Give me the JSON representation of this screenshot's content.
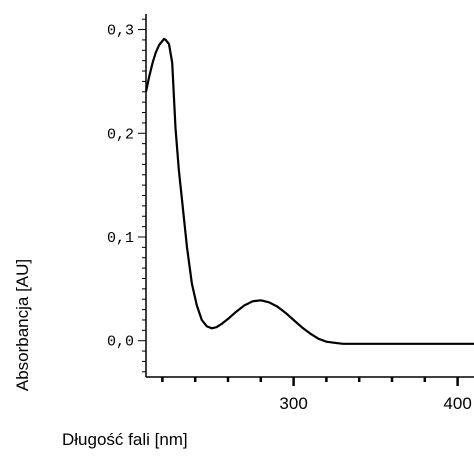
{
  "chart_data": {
    "type": "line",
    "title": "",
    "xlabel": "Długość fali [nm]",
    "ylabel": "Absorbancja [AU]",
    "xlim": [
      210,
      410
    ],
    "ylim": [
      -0.035,
      0.315
    ],
    "x_ticks": [
      300,
      400
    ],
    "x_tick_labels": [
      "300",
      "400"
    ],
    "y_ticks": [
      0.0,
      0.1,
      0.2,
      0.3
    ],
    "y_tick_labels": [
      "0,0",
      "0,1",
      "0,2",
      "0,3"
    ],
    "grid": false,
    "legend": "none",
    "line_color": "#000000",
    "series": [
      {
        "x": [
          210,
          212,
          214,
          216,
          218,
          220,
          221,
          222,
          223,
          224,
          226,
          228,
          230,
          232,
          235,
          238,
          241,
          244,
          247,
          250,
          253,
          256,
          260,
          265,
          270,
          275,
          280,
          285,
          290,
          295,
          300,
          305,
          310,
          315,
          320,
          325,
          330,
          340,
          350,
          360,
          380,
          400,
          410
        ],
        "y": [
          0.24,
          0.255,
          0.268,
          0.278,
          0.285,
          0.289,
          0.291,
          0.29,
          0.288,
          0.286,
          0.268,
          0.205,
          0.165,
          0.135,
          0.09,
          0.055,
          0.034,
          0.02,
          0.014,
          0.012,
          0.013,
          0.016,
          0.021,
          0.028,
          0.034,
          0.038,
          0.039,
          0.037,
          0.033,
          0.027,
          0.02,
          0.013,
          0.007,
          0.002,
          -0.001,
          -0.002,
          -0.003,
          -0.003,
          -0.003,
          -0.003,
          -0.003,
          -0.003,
          -0.003
        ]
      }
    ]
  }
}
